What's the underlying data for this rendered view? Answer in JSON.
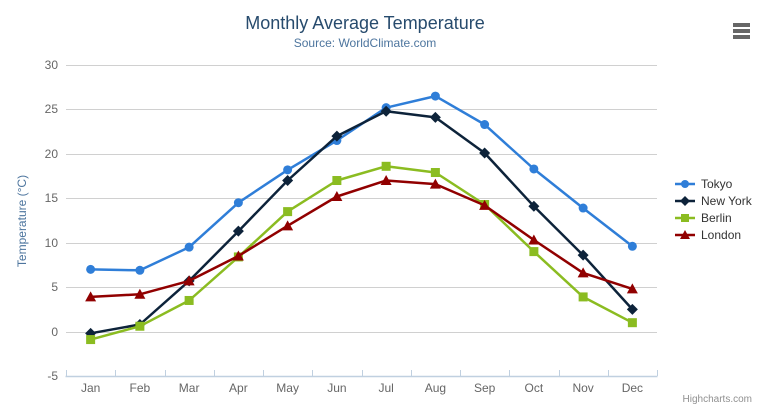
{
  "credits": {
    "label": "Highcharts.com"
  },
  "icons": {
    "export_menu": "hamburger-icon"
  },
  "chart_data": {
    "type": "line",
    "title": "Monthly Average Temperature",
    "subtitle": "Source: WorldClimate.com",
    "categories": [
      "Jan",
      "Feb",
      "Mar",
      "Apr",
      "May",
      "Jun",
      "Jul",
      "Aug",
      "Sep",
      "Oct",
      "Nov",
      "Dec"
    ],
    "xlabel": "",
    "ylabel": "Temperature (°C)",
    "ylim": [
      -5,
      30
    ],
    "yticks": [
      -5,
      0,
      5,
      10,
      15,
      20,
      25,
      30
    ],
    "grid": true,
    "legend_position": "right",
    "colors": {
      "grid_line": "#D0D0D0",
      "axis_line": "#C0D0E0",
      "axis_label": "#666666",
      "title": "#274b6d",
      "subtitle": "#4d759e",
      "legend_text": "#333333"
    },
    "series": [
      {
        "name": "Tokyo",
        "color": "#2f7ed8",
        "marker": "circle",
        "values": [
          7.0,
          6.9,
          9.5,
          14.5,
          18.2,
          21.5,
          25.2,
          26.5,
          23.3,
          18.3,
          13.9,
          9.6
        ]
      },
      {
        "name": "New York",
        "color": "#0d233a",
        "marker": "diamond",
        "values": [
          -0.2,
          0.8,
          5.7,
          11.3,
          17.0,
          22.0,
          24.8,
          24.1,
          20.1,
          14.1,
          8.6,
          2.5
        ]
      },
      {
        "name": "Berlin",
        "color": "#8bbc21",
        "marker": "square",
        "values": [
          -0.9,
          0.6,
          3.5,
          8.4,
          13.5,
          17.0,
          18.6,
          17.9,
          14.3,
          9.0,
          3.9,
          1.0
        ]
      },
      {
        "name": "London",
        "color": "#910000",
        "marker": "triangle",
        "values": [
          3.9,
          4.2,
          5.7,
          8.5,
          11.9,
          15.2,
          17.0,
          16.6,
          14.2,
          10.3,
          6.6,
          4.8
        ]
      }
    ]
  }
}
